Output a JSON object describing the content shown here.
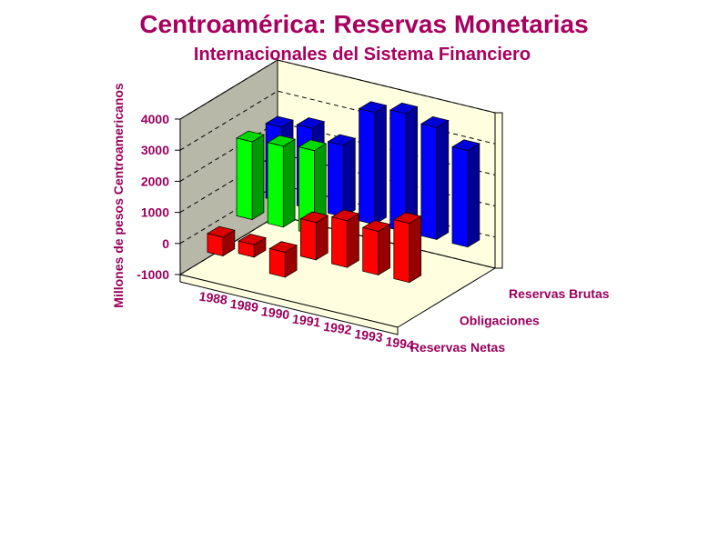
{
  "chart_data": {
    "type": "bar3d",
    "title": "Centroamérica: Reservas Monetarias",
    "subtitle": "Internacionales del Sistema Financiero",
    "y_label": "Millones de pesos Centroamericanos",
    "categories": [
      "1988",
      "1989",
      "1990",
      "1991",
      "1992",
      "1993",
      "1994"
    ],
    "series": [
      {
        "name": "Reservas Netas",
        "color": "#ff0000",
        "values": [
          -600,
          -400,
          -800,
          1200,
          1500,
          1400,
          1900
        ]
      },
      {
        "name": "Obligaciones",
        "color": "#00ff00",
        "values": [
          2500,
          2600,
          2700,
          null,
          null,
          null,
          null
        ]
      },
      {
        "name": "Reservas Brutas",
        "color": "#0000ff",
        "values": [
          2400,
          2600,
          2300,
          3600,
          3800,
          3600,
          3100
        ]
      }
    ],
    "ylim": [
      -1000,
      4000
    ],
    "yticks": [
      -1000,
      0,
      1000,
      2000,
      3000,
      4000
    ],
    "grid": true
  }
}
